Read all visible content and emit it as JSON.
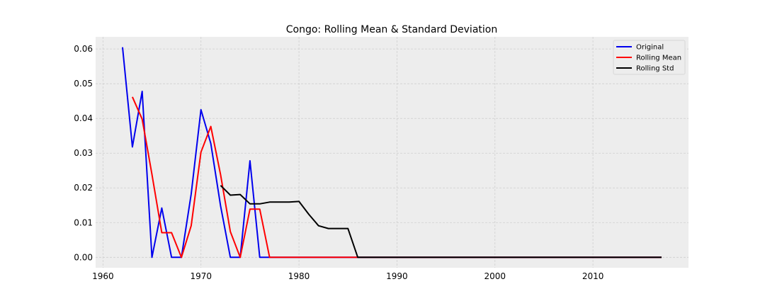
{
  "chart_data": {
    "type": "line",
    "title": "Congo: Rolling Mean & Standard Deviation",
    "xlabel": "",
    "ylabel": "",
    "xlim": [
      1959.25,
      2019.75
    ],
    "ylim": [
      -0.003,
      0.0635
    ],
    "x_ticks": [
      1960,
      1970,
      1980,
      1990,
      2000,
      2010
    ],
    "y_ticks": [
      0.0,
      0.01,
      0.02,
      0.03,
      0.04,
      0.05,
      0.06
    ],
    "grid": true,
    "legend_position": "top-right",
    "series": [
      {
        "name": "Original",
        "color": "#0000ee",
        "x": [
          1962,
          1963,
          1964,
          1965,
          1966,
          1967,
          1968,
          1969,
          1970,
          1971,
          1972,
          1973,
          1974,
          1975,
          1976,
          1977,
          1978,
          1979,
          1980,
          1981,
          1982,
          1983,
          1984,
          1985,
          1986,
          1987,
          1988,
          1989,
          1990,
          1991,
          1992,
          1993,
          1994,
          1995,
          1996,
          1997,
          1998,
          1999,
          2000,
          2001,
          2002,
          2003,
          2004,
          2005,
          2006,
          2007,
          2008,
          2009,
          2010,
          2011,
          2012,
          2013,
          2014,
          2015,
          2016,
          2017
        ],
        "values": [
          0.0605,
          0.0318,
          0.0478,
          0.0,
          0.0142,
          0.0,
          0.0,
          0.0182,
          0.0425,
          0.0328,
          0.0148,
          0.0,
          0.0,
          0.0278,
          0.0,
          0.0,
          0.0,
          0.0,
          0.0,
          0.0,
          0.0,
          0.0,
          0.0,
          0.0,
          0.0,
          0.0,
          0.0,
          0.0,
          0.0,
          0.0,
          0.0,
          0.0,
          0.0,
          0.0,
          0.0,
          0.0,
          0.0,
          0.0,
          0.0,
          0.0,
          0.0,
          0.0,
          0.0,
          0.0,
          0.0,
          0.0,
          0.0,
          0.0,
          0.0,
          0.0,
          0.0,
          0.0,
          0.0,
          0.0,
          0.0,
          0.0
        ]
      },
      {
        "name": "Rolling Mean",
        "color": "#ff0000",
        "x": [
          1963,
          1964,
          1965,
          1966,
          1967,
          1968,
          1969,
          1970,
          1971,
          1972,
          1973,
          1974,
          1975,
          1976,
          1977,
          1978,
          1979,
          1980,
          1981,
          1982,
          1983,
          1984,
          1985,
          1986,
          1987,
          1988,
          1989,
          1990,
          1991,
          1992,
          1993,
          1994,
          1995,
          1996,
          1997,
          1998,
          1999,
          2000,
          2001,
          2002,
          2003,
          2004,
          2005,
          2006,
          2007,
          2008,
          2009,
          2010,
          2011,
          2012,
          2013,
          2014,
          2015,
          2016,
          2017
        ],
        "values": [
          0.0462,
          0.0398,
          0.0239,
          0.0071,
          0.0071,
          0.0,
          0.0091,
          0.0303,
          0.0377,
          0.0238,
          0.0074,
          0.0,
          0.0139,
          0.0139,
          0.0,
          0.0,
          0.0,
          0.0,
          0.0,
          0.0,
          0.0,
          0.0,
          0.0,
          0.0,
          0.0,
          0.0,
          0.0,
          0.0,
          0.0,
          0.0,
          0.0,
          0.0,
          0.0,
          0.0,
          0.0,
          0.0,
          0.0,
          0.0,
          0.0,
          0.0,
          0.0,
          0.0,
          0.0,
          0.0,
          0.0,
          0.0,
          0.0,
          0.0,
          0.0,
          0.0,
          0.0,
          0.0,
          0.0,
          0.0,
          0.0
        ]
      },
      {
        "name": "Rolling Std",
        "color": "#000000",
        "x": [
          1972,
          1973,
          1974,
          1975,
          1976,
          1977,
          1978,
          1979,
          1980,
          1981,
          1982,
          1983,
          1984,
          1985,
          1986,
          1987,
          1988,
          1989,
          1990,
          1991,
          1992,
          1993,
          1994,
          1995,
          1996,
          1997,
          1998,
          1999,
          2000,
          2001,
          2002,
          2003,
          2004,
          2005,
          2006,
          2007,
          2008,
          2009,
          2010,
          2011,
          2012,
          2013,
          2014,
          2015,
          2016,
          2017
        ],
        "values": [
          0.0207,
          0.0179,
          0.0181,
          0.0154,
          0.0154,
          0.0159,
          0.0159,
          0.0159,
          0.0161,
          0.0124,
          0.0091,
          0.0083,
          0.0083,
          0.0083,
          0.0,
          0.0,
          0.0,
          0.0,
          0.0,
          0.0,
          0.0,
          0.0,
          0.0,
          0.0,
          0.0,
          0.0,
          0.0,
          0.0,
          0.0,
          0.0,
          0.0,
          0.0,
          0.0,
          0.0,
          0.0,
          0.0,
          0.0,
          0.0,
          0.0,
          0.0,
          0.0,
          0.0,
          0.0,
          0.0,
          0.0,
          0.0
        ]
      }
    ]
  },
  "style": {
    "plot_background": "#ededed",
    "grid_color": "#cfcfcf"
  }
}
